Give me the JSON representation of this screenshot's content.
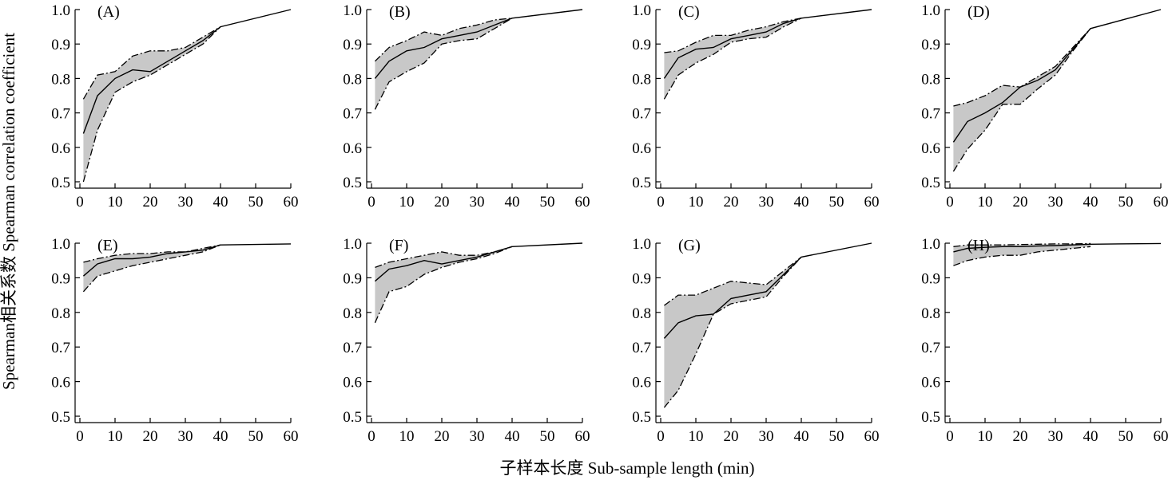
{
  "figure": {
    "ylabel": "Spearman相关系数 Spearman correlation coefficient",
    "xlabel": "子样本长度 Sub-sample length (min)"
  },
  "chart_data": [
    {
      "type": "line",
      "label": "(A)",
      "xlim": [
        0,
        60
      ],
      "ylim": [
        0.5,
        1.0
      ],
      "xticks": [
        "0",
        "10",
        "20",
        "30",
        "40",
        "50",
        "60"
      ],
      "yticks": [
        "0.5",
        "0.6",
        "0.7",
        "0.8",
        "0.9",
        "1.0"
      ],
      "band_color": "#c8c8c8",
      "series": [
        {
          "role": "mean",
          "x": [
            1,
            5,
            10,
            15,
            20,
            25,
            30,
            35,
            40,
            60
          ],
          "y": [
            0.64,
            0.75,
            0.8,
            0.825,
            0.82,
            0.85,
            0.88,
            0.91,
            0.95,
            1.0
          ]
        },
        {
          "role": "upper",
          "x": [
            1,
            5,
            10,
            15,
            20,
            25,
            30,
            35,
            40
          ],
          "y": [
            0.74,
            0.81,
            0.82,
            0.865,
            0.88,
            0.88,
            0.89,
            0.92,
            0.95
          ]
        },
        {
          "role": "lower",
          "x": [
            1,
            5,
            10,
            15,
            20,
            25,
            30,
            35,
            40
          ],
          "y": [
            0.5,
            0.65,
            0.76,
            0.79,
            0.81,
            0.84,
            0.87,
            0.9,
            0.95
          ]
        }
      ]
    },
    {
      "type": "line",
      "label": "(B)",
      "xlim": [
        0,
        60
      ],
      "ylim": [
        0.5,
        1.0
      ],
      "xticks": [
        "0",
        "10",
        "20",
        "30",
        "40",
        "50",
        "60"
      ],
      "yticks": [
        "0.5",
        "0.6",
        "0.7",
        "0.8",
        "0.9",
        "1.0"
      ],
      "band_color": "#c8c8c8",
      "series": [
        {
          "role": "mean",
          "x": [
            1,
            5,
            10,
            15,
            20,
            25,
            30,
            35,
            40,
            60
          ],
          "y": [
            0.8,
            0.85,
            0.88,
            0.89,
            0.915,
            0.925,
            0.935,
            0.955,
            0.975,
            1.0
          ]
        },
        {
          "role": "upper",
          "x": [
            1,
            5,
            10,
            15,
            20,
            25,
            30,
            35,
            40
          ],
          "y": [
            0.85,
            0.89,
            0.91,
            0.935,
            0.925,
            0.945,
            0.955,
            0.97,
            0.975
          ]
        },
        {
          "role": "lower",
          "x": [
            1,
            5,
            10,
            15,
            20,
            25,
            30,
            35,
            40
          ],
          "y": [
            0.71,
            0.79,
            0.82,
            0.845,
            0.9,
            0.91,
            0.915,
            0.945,
            0.975
          ]
        }
      ]
    },
    {
      "type": "line",
      "label": "(C)",
      "xlim": [
        0,
        60
      ],
      "ylim": [
        0.5,
        1.0
      ],
      "xticks": [
        "0",
        "10",
        "20",
        "30",
        "40",
        "50",
        "60"
      ],
      "yticks": [
        "0.5",
        "0.6",
        "0.7",
        "0.8",
        "0.9",
        "1.0"
      ],
      "band_color": "#c8c8c8",
      "series": [
        {
          "role": "mean",
          "x": [
            1,
            5,
            10,
            15,
            20,
            25,
            30,
            35,
            40,
            60
          ],
          "y": [
            0.8,
            0.86,
            0.885,
            0.89,
            0.915,
            0.925,
            0.935,
            0.96,
            0.975,
            1.0
          ]
        },
        {
          "role": "upper",
          "x": [
            1,
            5,
            10,
            15,
            20,
            25,
            30,
            35,
            40
          ],
          "y": [
            0.875,
            0.88,
            0.905,
            0.925,
            0.925,
            0.94,
            0.95,
            0.965,
            0.975
          ]
        },
        {
          "role": "lower",
          "x": [
            1,
            5,
            10,
            15,
            20,
            25,
            30,
            35,
            40
          ],
          "y": [
            0.74,
            0.81,
            0.845,
            0.87,
            0.905,
            0.915,
            0.92,
            0.95,
            0.975
          ]
        }
      ]
    },
    {
      "type": "line",
      "label": "(D)",
      "xlim": [
        0,
        60
      ],
      "ylim": [
        0.5,
        1.0
      ],
      "xticks": [
        "0",
        "10",
        "20",
        "30",
        "40",
        "50",
        "60"
      ],
      "yticks": [
        "0.5",
        "0.6",
        "0.7",
        "0.8",
        "0.9",
        "1.0"
      ],
      "band_color": "#c8c8c8",
      "series": [
        {
          "role": "mean",
          "x": [
            1,
            5,
            10,
            15,
            20,
            25,
            30,
            35,
            40,
            60
          ],
          "y": [
            0.615,
            0.675,
            0.7,
            0.73,
            0.775,
            0.795,
            0.825,
            0.885,
            0.945,
            1.0
          ]
        },
        {
          "role": "upper",
          "x": [
            1,
            5,
            10,
            15,
            20,
            25,
            30,
            35,
            40
          ],
          "y": [
            0.72,
            0.73,
            0.75,
            0.78,
            0.775,
            0.805,
            0.835,
            0.89,
            0.945
          ]
        },
        {
          "role": "lower",
          "x": [
            1,
            5,
            10,
            15,
            20,
            25,
            30,
            35,
            40
          ],
          "y": [
            0.53,
            0.595,
            0.65,
            0.725,
            0.725,
            0.77,
            0.81,
            0.88,
            0.945
          ]
        }
      ]
    },
    {
      "type": "line",
      "label": "(E)",
      "xlim": [
        0,
        60
      ],
      "ylim": [
        0.5,
        1.0
      ],
      "xticks": [
        "0",
        "10",
        "20",
        "30",
        "40",
        "50",
        "60"
      ],
      "yticks": [
        "0.5",
        "0.6",
        "0.7",
        "0.8",
        "0.9",
        "1.0"
      ],
      "band_color": "#c8c8c8",
      "series": [
        {
          "role": "mean",
          "x": [
            1,
            5,
            10,
            15,
            20,
            25,
            30,
            35,
            40,
            60
          ],
          "y": [
            0.905,
            0.94,
            0.955,
            0.955,
            0.96,
            0.97,
            0.975,
            0.98,
            0.995,
            0.998
          ]
        },
        {
          "role": "upper",
          "x": [
            1,
            5,
            10,
            15,
            20,
            25,
            30,
            35,
            40
          ],
          "y": [
            0.945,
            0.955,
            0.965,
            0.97,
            0.97,
            0.975,
            0.975,
            0.985,
            0.995
          ]
        },
        {
          "role": "lower",
          "x": [
            1,
            5,
            10,
            15,
            20,
            25,
            30,
            35,
            40
          ],
          "y": [
            0.86,
            0.905,
            0.92,
            0.935,
            0.945,
            0.955,
            0.965,
            0.975,
            0.995
          ]
        }
      ]
    },
    {
      "type": "line",
      "label": "(F)",
      "xlim": [
        0,
        60
      ],
      "ylim": [
        0.5,
        1.0
      ],
      "xticks": [
        "0",
        "10",
        "20",
        "30",
        "40",
        "50",
        "60"
      ],
      "yticks": [
        "0.5",
        "0.6",
        "0.7",
        "0.8",
        "0.9",
        "1.0"
      ],
      "band_color": "#c8c8c8",
      "series": [
        {
          "role": "mean",
          "x": [
            1,
            5,
            10,
            15,
            20,
            25,
            30,
            35,
            40,
            60
          ],
          "y": [
            0.89,
            0.925,
            0.935,
            0.95,
            0.94,
            0.95,
            0.96,
            0.975,
            0.99,
            1.0
          ]
        },
        {
          "role": "upper",
          "x": [
            1,
            5,
            10,
            15,
            20,
            25,
            30,
            35,
            40
          ],
          "y": [
            0.93,
            0.945,
            0.955,
            0.965,
            0.975,
            0.965,
            0.965,
            0.975,
            0.99
          ]
        },
        {
          "role": "lower",
          "x": [
            1,
            5,
            10,
            15,
            20,
            25,
            30,
            35,
            40
          ],
          "y": [
            0.77,
            0.86,
            0.875,
            0.91,
            0.93,
            0.945,
            0.955,
            0.97,
            0.99
          ]
        }
      ]
    },
    {
      "type": "line",
      "label": "(G)",
      "xlim": [
        0,
        60
      ],
      "ylim": [
        0.5,
        1.0
      ],
      "xticks": [
        "0",
        "10",
        "20",
        "30",
        "40",
        "50",
        "60"
      ],
      "yticks": [
        "0.5",
        "0.6",
        "0.7",
        "0.8",
        "0.9",
        "1.0"
      ],
      "band_color": "#c8c8c8",
      "series": [
        {
          "role": "mean",
          "x": [
            1,
            5,
            10,
            15,
            20,
            25,
            30,
            35,
            40,
            60
          ],
          "y": [
            0.725,
            0.77,
            0.79,
            0.795,
            0.84,
            0.85,
            0.86,
            0.91,
            0.96,
            1.0
          ]
        },
        {
          "role": "upper",
          "x": [
            1,
            5,
            10,
            15,
            20,
            25,
            30,
            35,
            40
          ],
          "y": [
            0.82,
            0.85,
            0.85,
            0.87,
            0.89,
            0.885,
            0.88,
            0.92,
            0.96
          ]
        },
        {
          "role": "lower",
          "x": [
            1,
            5,
            10,
            15,
            20,
            25,
            30,
            35,
            40
          ],
          "y": [
            0.525,
            0.575,
            0.68,
            0.795,
            0.825,
            0.835,
            0.845,
            0.905,
            0.96
          ]
        }
      ]
    },
    {
      "type": "line",
      "label": "(H)",
      "xlim": [
        0,
        60
      ],
      "ylim": [
        0.5,
        1.0
      ],
      "xticks": [
        "0",
        "10",
        "20",
        "30",
        "40",
        "50",
        "60"
      ],
      "yticks": [
        "0.5",
        "0.6",
        "0.7",
        "0.8",
        "0.9",
        "1.0"
      ],
      "band_color": "#c8c8c8",
      "series": [
        {
          "role": "mean",
          "x": [
            1,
            5,
            10,
            15,
            20,
            25,
            30,
            35,
            40,
            60
          ],
          "y": [
            0.975,
            0.985,
            0.988,
            0.99,
            0.99,
            0.992,
            0.993,
            0.995,
            0.997,
            0.999
          ]
        },
        {
          "role": "upper",
          "x": [
            1,
            5,
            10,
            15,
            20,
            25,
            30,
            35,
            40
          ],
          "y": [
            0.99,
            0.995,
            0.995,
            0.995,
            0.996,
            0.997,
            0.998,
            0.998,
            0.999
          ]
        },
        {
          "role": "lower",
          "x": [
            1,
            5,
            10,
            15,
            20,
            25,
            30,
            35,
            40
          ],
          "y": [
            0.935,
            0.95,
            0.96,
            0.965,
            0.965,
            0.975,
            0.98,
            0.985,
            0.99
          ]
        }
      ]
    }
  ]
}
